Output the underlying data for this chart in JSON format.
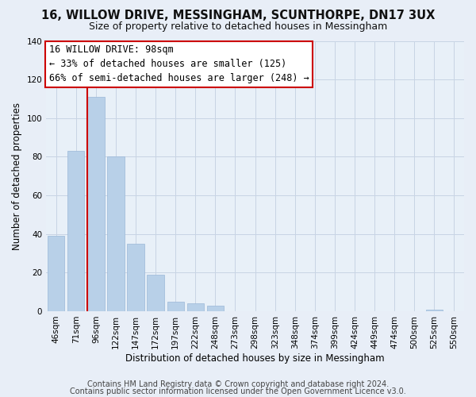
{
  "title": "16, WILLOW DRIVE, MESSINGHAM, SCUNTHORPE, DN17 3UX",
  "subtitle": "Size of property relative to detached houses in Messingham",
  "xlabel": "Distribution of detached houses by size in Messingham",
  "ylabel": "Number of detached properties",
  "bar_labels": [
    "46sqm",
    "71sqm",
    "96sqm",
    "122sqm",
    "147sqm",
    "172sqm",
    "197sqm",
    "222sqm",
    "248sqm",
    "273sqm",
    "298sqm",
    "323sqm",
    "348sqm",
    "374sqm",
    "399sqm",
    "424sqm",
    "449sqm",
    "474sqm",
    "500sqm",
    "525sqm",
    "550sqm"
  ],
  "bar_values": [
    39,
    83,
    111,
    80,
    35,
    19,
    5,
    4,
    3,
    0,
    0,
    0,
    0,
    0,
    0,
    0,
    0,
    0,
    0,
    1,
    0
  ],
  "bar_color": "#b8d0e8",
  "highlight_line_color": "#cc0000",
  "highlight_bar_index": 2,
  "ylim": [
    0,
    140
  ],
  "yticks": [
    0,
    20,
    40,
    60,
    80,
    100,
    120,
    140
  ],
  "annotation_line1": "16 WILLOW DRIVE: 98sqm",
  "annotation_line2": "← 33% of detached houses are smaller (125)",
  "annotation_line3": "66% of semi-detached houses are larger (248) →",
  "footer_line1": "Contains HM Land Registry data © Crown copyright and database right 2024.",
  "footer_line2": "Contains public sector information licensed under the Open Government Licence v3.0.",
  "background_color": "#e8eef7",
  "plot_background_color": "#e8f0f8",
  "grid_color": "#c8d4e4",
  "title_fontsize": 10.5,
  "subtitle_fontsize": 9,
  "axis_fontsize": 8.5,
  "tick_fontsize": 7.5,
  "annotation_fontsize": 8.5,
  "footer_fontsize": 7
}
